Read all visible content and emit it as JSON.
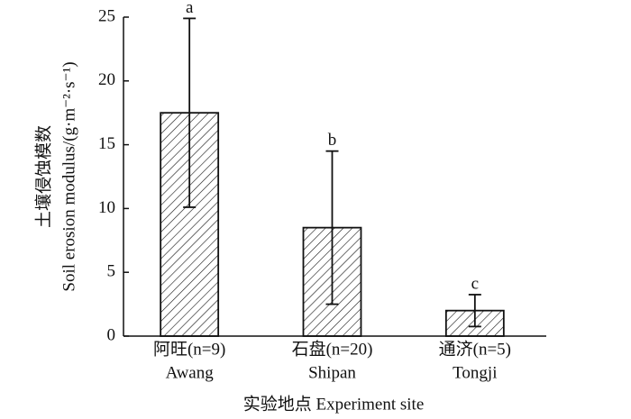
{
  "chart_data": {
    "type": "bar",
    "categories": [
      "Awang",
      "Shipan",
      "Tongji"
    ],
    "category_labels_cn": [
      "阿旺(n=9)",
      "石盘(n=20)",
      "通济(n=5)"
    ],
    "values": [
      17.5,
      8.5,
      2.0
    ],
    "errors": [
      7.4,
      6.0,
      1.25
    ],
    "annotations": [
      "a",
      "b",
      "c"
    ],
    "ylabel_cn": "土壤侵蚀模数",
    "ylabel": "Soil erosion modulus/(g·m⁻²·s⁻¹)",
    "xlabel": "实验地点 Experiment site",
    "ylim": [
      0,
      25
    ],
    "yticks": [
      0,
      5,
      10,
      15,
      20,
      25
    ],
    "color": "#111111",
    "hatch": true,
    "grid": false
  }
}
